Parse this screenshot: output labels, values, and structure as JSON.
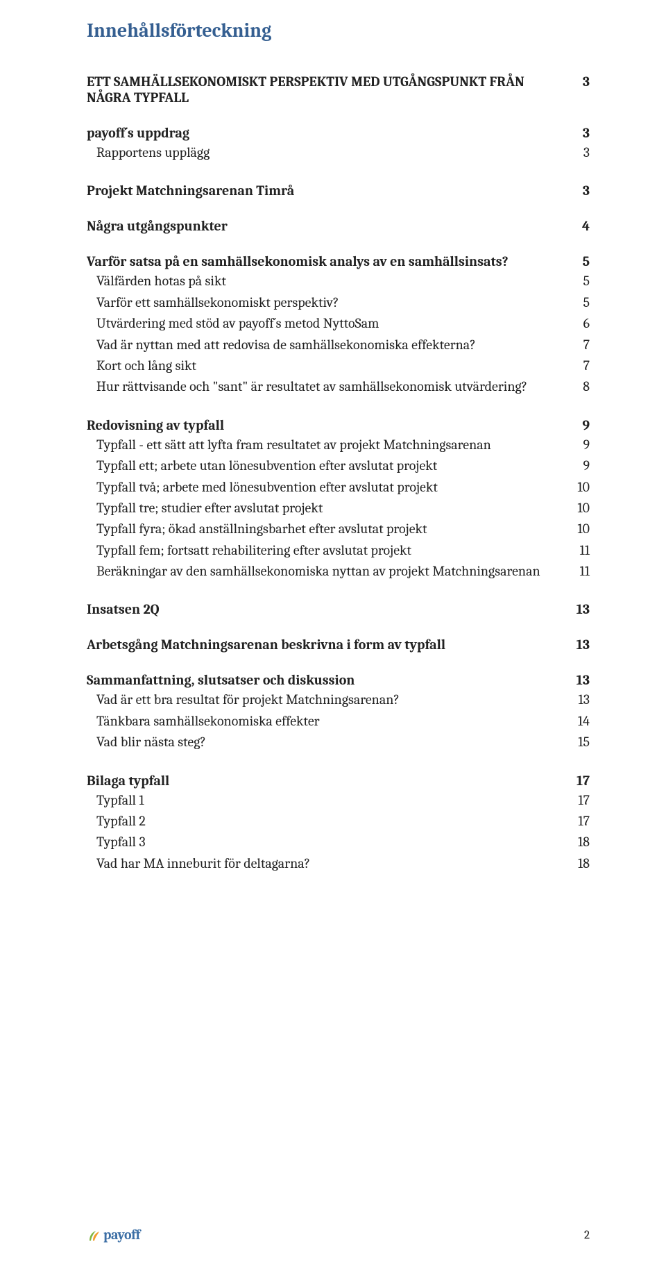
{
  "title": "Innehållsförteckning",
  "colors": {
    "heading": "#355f91",
    "body_text": "#222222",
    "background": "#ffffff",
    "logo_blue": "#3b6ea5",
    "logo_green": "#7fb642",
    "logo_orange": "#f29b2a"
  },
  "typography": {
    "heading_fontsize_pt": 20,
    "level1_fontsize_pt": 14,
    "level2_fontsize_pt": 14,
    "font_family": "Cambria / serif"
  },
  "footer": {
    "logo_text": "payoff",
    "page_number": "2"
  },
  "toc": [
    {
      "level": 1,
      "text": "ETT SAMHÄLLSEKONOMISKT PERSPEKTIV MED UTGÅNGSPUNKT FRÅN NÅGRA TYPFALL",
      "page": "3"
    },
    {
      "level": 1,
      "text": "payoff´s uppdrag",
      "page": "3"
    },
    {
      "level": 2,
      "text": "Rapportens upplägg",
      "page": "3"
    },
    {
      "level": 1,
      "text": "Projekt Matchningsarenan Timrå",
      "page": "3"
    },
    {
      "level": 1,
      "text": "Några utgångspunkter",
      "page": "4"
    },
    {
      "level": 1,
      "text": "Varför satsa på en samhällsekonomisk analys av en samhällsinsats?",
      "page": "5"
    },
    {
      "level": 2,
      "text": "Välfärden hotas på sikt",
      "page": "5"
    },
    {
      "level": 2,
      "text": "Varför ett samhällsekonomiskt perspektiv?",
      "page": "5"
    },
    {
      "level": 2,
      "text": "Utvärdering med stöd av payoff´s metod NyttoSam",
      "page": "6"
    },
    {
      "level": 2,
      "text": "Vad är nyttan med att redovisa de samhällsekonomiska effekterna?",
      "page": "7"
    },
    {
      "level": 2,
      "text": "Kort och lång sikt",
      "page": "7"
    },
    {
      "level": 2,
      "text": "Hur rättvisande och \"sant\" är resultatet av samhällsekonomisk utvärdering?",
      "page": "8"
    },
    {
      "level": 1,
      "text": "Redovisning av typfall",
      "page": "9"
    },
    {
      "level": 2,
      "text": "Typfall - ett sätt att lyfta fram resultatet av projekt Matchningsarenan",
      "page": "9"
    },
    {
      "level": 2,
      "text": "Typfall ett; arbete utan lönesubvention efter avslutat projekt",
      "page": "9"
    },
    {
      "level": 2,
      "text": "Typfall två; arbete med lönesubvention efter avslutat projekt",
      "page": "10"
    },
    {
      "level": 2,
      "text": "Typfall tre; studier efter avslutat projekt",
      "page": "10"
    },
    {
      "level": 2,
      "text": "Typfall fyra; ökad anställningsbarhet efter avslutat projekt",
      "page": "10"
    },
    {
      "level": 2,
      "text": "Typfall fem; fortsatt rehabilitering efter avslutat projekt",
      "page": "11"
    },
    {
      "level": 2,
      "text": "Beräkningar av den samhällsekonomiska nyttan av projekt Matchningsarenan",
      "page": "11"
    },
    {
      "level": 1,
      "text": "Insatsen 2Q",
      "page": "13"
    },
    {
      "level": 1,
      "text": "Arbetsgång Matchningsarenan beskrivna i form av typfall",
      "page": "13"
    },
    {
      "level": 1,
      "text": "Sammanfattning, slutsatser och diskussion",
      "page": "13"
    },
    {
      "level": 2,
      "text": "Vad är ett bra resultat för projekt Matchningsarenan?",
      "page": "13"
    },
    {
      "level": 2,
      "text": "Tänkbara samhällsekonomiska effekter",
      "page": "14"
    },
    {
      "level": 2,
      "text": "Vad blir nästa steg?",
      "page": "15"
    },
    {
      "level": 1,
      "text": "Bilaga typfall",
      "page": "17"
    },
    {
      "level": 2,
      "text": "Typfall 1",
      "page": "17"
    },
    {
      "level": 2,
      "text": "Typfall 2",
      "page": "17"
    },
    {
      "level": 2,
      "text": "Typfall 3",
      "page": "18"
    },
    {
      "level": 2,
      "text": "Vad har MA inneburit för deltagarna?",
      "page": "18"
    }
  ]
}
